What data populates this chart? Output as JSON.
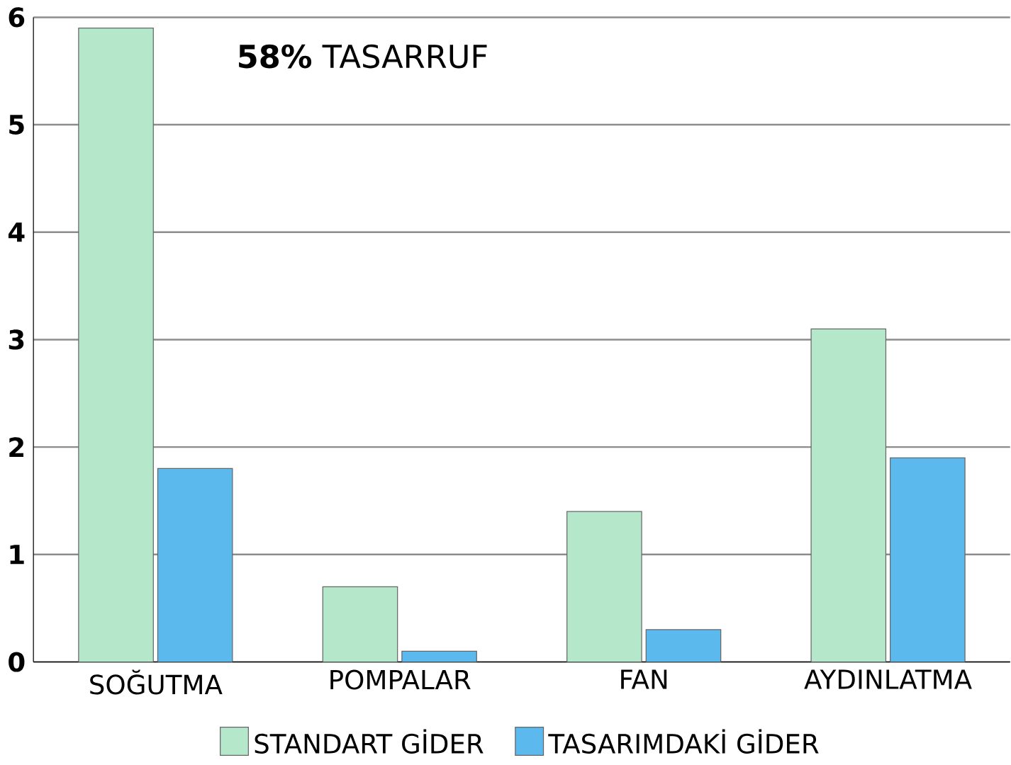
{
  "chart_data": {
    "type": "bar",
    "categories": [
      "SOĞUTMA",
      "POMPALAR",
      "FAN",
      "AYDINLATMA"
    ],
    "series": [
      {
        "name": "STANDART GİDER",
        "color": "#b5e8cb",
        "values": [
          5.9,
          0.7,
          1.4,
          3.1
        ]
      },
      {
        "name": "TASARIMDAKİ GİDER",
        "color": "#5bb9ee",
        "values": [
          1.8,
          0.1,
          0.3,
          1.9
        ]
      }
    ],
    "ylim": [
      0,
      6
    ],
    "yticks": [
      0,
      1,
      2,
      3,
      4,
      5,
      6
    ],
    "grid": "y",
    "legend": "bottom",
    "annotations": [
      "**58%** TASARRUF"
    ]
  }
}
